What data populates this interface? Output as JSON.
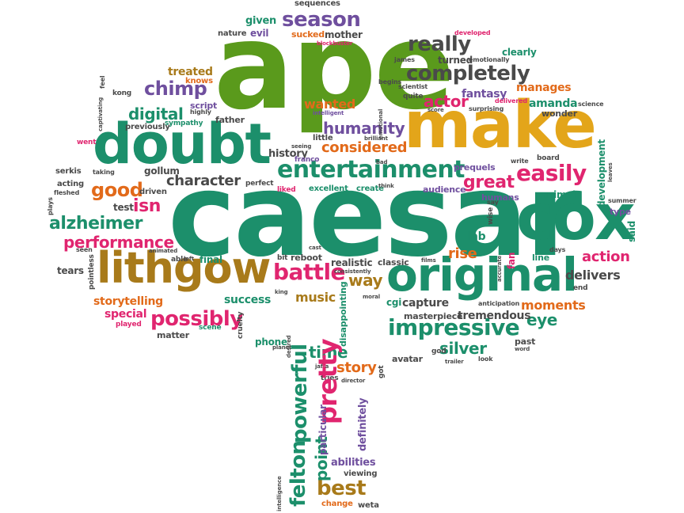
{
  "palette": {
    "green": "#5a9a1c",
    "teal": "#1c8f6b",
    "gold": "#e3a51a",
    "brown": "#a87a1a",
    "pink": "#e0256f",
    "purple": "#6f4f9e",
    "orange": "#e26a1a",
    "gray": "#4a4a4a"
  },
  "words": [
    {
      "text": "ape",
      "color": "green"
    },
    {
      "text": "caesar",
      "color": "teal"
    },
    {
      "text": "make",
      "color": "gold"
    },
    {
      "text": "doubt",
      "color": "teal"
    },
    {
      "text": "cox",
      "color": "teal"
    },
    {
      "text": "original",
      "color": "teal"
    },
    {
      "text": "lithgow",
      "color": "brown"
    },
    {
      "text": "entertainment",
      "color": "teal"
    },
    {
      "text": "season",
      "color": "purple"
    },
    {
      "text": "really",
      "color": "gray"
    },
    {
      "text": "completely",
      "color": "gray"
    },
    {
      "text": "battle",
      "color": "pink"
    },
    {
      "text": "impressive",
      "color": "teal"
    },
    {
      "text": "possibly",
      "color": "pink"
    },
    {
      "text": "performance",
      "color": "pink"
    },
    {
      "text": "alzheimer",
      "color": "teal"
    },
    {
      "text": "easily",
      "color": "pink"
    },
    {
      "text": "chimp",
      "color": "purple"
    },
    {
      "text": "humanity",
      "color": "purple"
    },
    {
      "text": "considered",
      "color": "orange"
    },
    {
      "text": "character",
      "color": "gray"
    },
    {
      "text": "good",
      "color": "orange"
    },
    {
      "text": "isn",
      "color": "pink"
    },
    {
      "text": "digital",
      "color": "teal"
    },
    {
      "text": "actor",
      "color": "pink"
    },
    {
      "text": "great",
      "color": "pink"
    },
    {
      "text": "action",
      "color": "pink"
    },
    {
      "text": "rise",
      "color": "orange"
    },
    {
      "text": "eye",
      "color": "teal"
    },
    {
      "text": "silver",
      "color": "teal"
    },
    {
      "text": "story",
      "color": "orange"
    },
    {
      "text": "time",
      "color": "teal"
    },
    {
      "text": "best",
      "color": "brown"
    },
    {
      "text": "pretty",
      "color": "pink"
    },
    {
      "text": "powerful",
      "color": "teal"
    },
    {
      "text": "felton",
      "color": "teal"
    },
    {
      "text": "point",
      "color": "teal"
    },
    {
      "text": "way",
      "color": "brown"
    },
    {
      "text": "music",
      "color": "brown"
    },
    {
      "text": "capture",
      "color": "gray"
    },
    {
      "text": "tremendous",
      "color": "gray"
    },
    {
      "text": "moments",
      "color": "orange"
    },
    {
      "text": "delivers",
      "color": "gray"
    },
    {
      "text": "storytelling",
      "color": "orange"
    },
    {
      "text": "special",
      "color": "pink"
    },
    {
      "text": "success",
      "color": "teal"
    },
    {
      "text": "wanted",
      "color": "orange"
    },
    {
      "text": "treated",
      "color": "brown"
    },
    {
      "text": "knows",
      "color": "orange"
    },
    {
      "text": "fantasy",
      "color": "purple"
    },
    {
      "text": "amanda",
      "color": "teal"
    },
    {
      "text": "manages",
      "color": "orange"
    },
    {
      "text": "clearly",
      "color": "teal"
    },
    {
      "text": "given",
      "color": "teal"
    },
    {
      "text": "evil",
      "color": "purple"
    },
    {
      "text": "nature",
      "color": "gray"
    },
    {
      "text": "sucked",
      "color": "orange"
    },
    {
      "text": "mother",
      "color": "gray"
    },
    {
      "text": "turned",
      "color": "gray"
    },
    {
      "text": "history",
      "color": "gray"
    },
    {
      "text": "gollum",
      "color": "gray"
    },
    {
      "text": "test",
      "color": "gray"
    },
    {
      "text": "tears",
      "color": "gray"
    },
    {
      "text": "script",
      "color": "purple"
    },
    {
      "text": "father",
      "color": "gray"
    },
    {
      "text": "previously",
      "color": "gray"
    },
    {
      "text": "sympathy",
      "color": "teal"
    },
    {
      "text": "little",
      "color": "gray"
    },
    {
      "text": "franco",
      "color": "purple"
    },
    {
      "text": "prequels",
      "color": "purple"
    },
    {
      "text": "audience",
      "color": "purple"
    },
    {
      "text": "excellent",
      "color": "teal"
    },
    {
      "text": "create",
      "color": "teal"
    },
    {
      "text": "humans",
      "color": "purple"
    },
    {
      "text": "animal",
      "color": "teal"
    },
    {
      "text": "development",
      "color": "teal"
    },
    {
      "text": "type",
      "color": "purple"
    },
    {
      "text": "said",
      "color": "teal"
    },
    {
      "text": "line",
      "color": "teal"
    },
    {
      "text": "lab",
      "color": "teal"
    },
    {
      "text": "realistic",
      "color": "gray"
    },
    {
      "text": "classic",
      "color": "gray"
    },
    {
      "text": "reboot",
      "color": "gray"
    },
    {
      "text": "final",
      "color": "teal"
    },
    {
      "text": "able",
      "color": "gray"
    },
    {
      "text": "cgi",
      "color": "teal"
    },
    {
      "text": "masterpiece",
      "color": "gray"
    },
    {
      "text": "past",
      "color": "gray"
    },
    {
      "text": "abilities",
      "color": "purple"
    },
    {
      "text": "viewing",
      "color": "gray"
    },
    {
      "text": "particular",
      "color": "purple"
    },
    {
      "text": "definitely",
      "color": "purple"
    },
    {
      "text": "change",
      "color": "orange"
    },
    {
      "text": "weta",
      "color": "gray"
    },
    {
      "text": "avatar",
      "color": "gray"
    },
    {
      "text": "god",
      "color": "gray"
    },
    {
      "text": "phone",
      "color": "teal"
    },
    {
      "text": "matter",
      "color": "gray"
    },
    {
      "text": "scene",
      "color": "teal"
    },
    {
      "text": "played",
      "color": "pink"
    },
    {
      "text": "kong",
      "color": "gray"
    },
    {
      "text": "highly",
      "color": "gray"
    },
    {
      "text": "acting",
      "color": "gray"
    },
    {
      "text": "serkis",
      "color": "gray"
    },
    {
      "text": "went",
      "color": "pink"
    },
    {
      "text": "taking",
      "color": "gray"
    },
    {
      "text": "perfect",
      "color": "gray"
    },
    {
      "text": "driven",
      "color": "gray"
    },
    {
      "text": "liked",
      "color": "pink"
    },
    {
      "text": "seeing",
      "color": "gray"
    },
    {
      "text": "intelligent",
      "color": "purple"
    },
    {
      "text": "brilliant",
      "color": "gray"
    },
    {
      "text": "emotional",
      "color": "gray"
    },
    {
      "text": "james",
      "color": "gray"
    },
    {
      "text": "begins",
      "color": "gray"
    },
    {
      "text": "scientist",
      "color": "gray"
    },
    {
      "text": "quite",
      "color": "gray"
    },
    {
      "text": "delivered",
      "color": "pink"
    },
    {
      "text": "surprising",
      "color": "gray"
    },
    {
      "text": "wonder",
      "color": "gray"
    },
    {
      "text": "science",
      "color": "gray"
    },
    {
      "text": "board",
      "color": "gray"
    },
    {
      "text": "emotionally",
      "color": "gray"
    },
    {
      "text": "developed",
      "color": "pink"
    },
    {
      "text": "blockbuster",
      "color": "pink"
    },
    {
      "text": "sequences",
      "color": "gray"
    },
    {
      "text": "feel",
      "color": "gray"
    },
    {
      "text": "captivating",
      "color": "gray"
    },
    {
      "text": "write",
      "color": "gray"
    },
    {
      "text": "leaves",
      "color": "gray"
    },
    {
      "text": "summer",
      "color": "gray"
    },
    {
      "text": "say",
      "color": "gray"
    },
    {
      "text": "wise",
      "color": "gray"
    },
    {
      "text": "fan",
      "color": "pink"
    },
    {
      "text": "accurate",
      "color": "gray"
    },
    {
      "text": "days",
      "color": "gray"
    },
    {
      "text": "anticipation",
      "color": "gray"
    },
    {
      "text": "end",
      "color": "gray"
    },
    {
      "text": "films",
      "color": "gray"
    },
    {
      "text": "cast",
      "color": "gray"
    },
    {
      "text": "bit",
      "color": "gray"
    },
    {
      "text": "consistently",
      "color": "gray"
    },
    {
      "text": "king",
      "color": "gray"
    },
    {
      "text": "moral",
      "color": "gray"
    },
    {
      "text": "disappointing",
      "color": "teal"
    },
    {
      "text": "cruelty",
      "color": "gray"
    },
    {
      "text": "desired",
      "color": "gray"
    },
    {
      "text": "planet",
      "color": "gray"
    },
    {
      "text": "jaffa",
      "color": "gray"
    },
    {
      "text": "tries",
      "color": "gray"
    },
    {
      "text": "director",
      "color": "gray"
    },
    {
      "text": "got",
      "color": "gray"
    },
    {
      "text": "trailer",
      "color": "gray"
    },
    {
      "text": "look",
      "color": "gray"
    },
    {
      "text": "word",
      "color": "gray"
    },
    {
      "text": "score",
      "color": "gray"
    },
    {
      "text": "animated",
      "color": "gray"
    },
    {
      "text": "seen",
      "color": "gray"
    },
    {
      "text": "pointless",
      "color": "gray"
    },
    {
      "text": "plays",
      "color": "gray"
    },
    {
      "text": "fleshed",
      "color": "gray"
    },
    {
      "text": "left",
      "color": "gray"
    },
    {
      "text": "intelligence",
      "color": "gray"
    },
    {
      "text": "think",
      "color": "gray"
    },
    {
      "text": "bad",
      "color": "gray"
    }
  ]
}
